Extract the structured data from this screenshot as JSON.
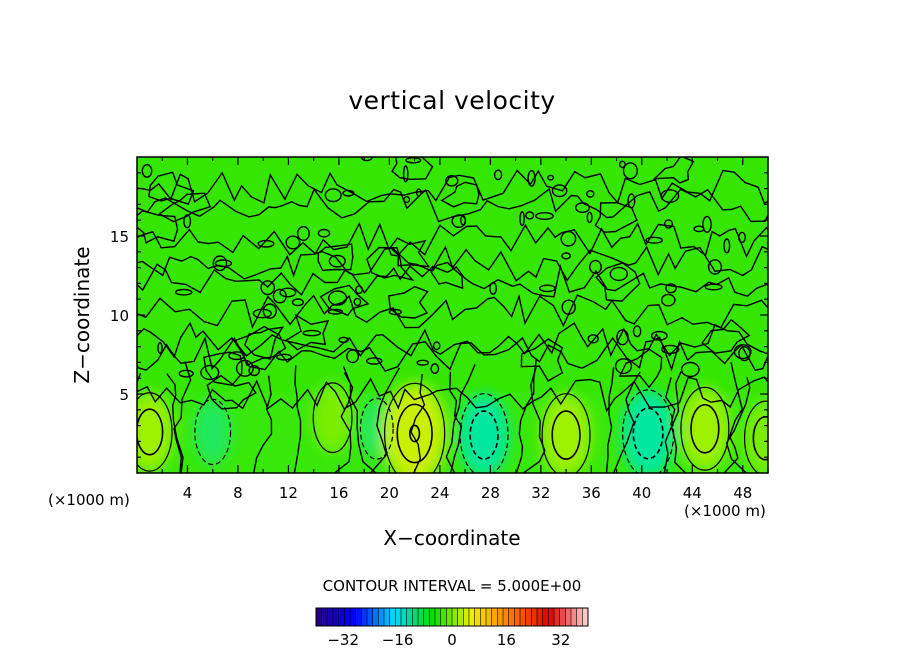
{
  "chart_data": {
    "type": "heatmap",
    "title": "vertical velocity",
    "xlabel": "X−coordinate",
    "ylabel": "Z−coordinate",
    "x_unit_label": "(×1000 m)",
    "z_unit_label": "(×1000 m)",
    "xlim": [
      0,
      50
    ],
    "zlim": [
      0,
      20
    ],
    "x_ticks": [
      4,
      8,
      12,
      16,
      20,
      24,
      28,
      32,
      36,
      40,
      44,
      48
    ],
    "z_ticks": [
      5,
      10,
      15
    ],
    "contour_interval_text": "CONTOUR INTERVAL = 5.000E+00",
    "contour_interval": 5.0,
    "colorbar": {
      "range": [
        -40,
        40
      ],
      "ticks": [
        "−32",
        "−16",
        "0",
        "16",
        "32"
      ],
      "tick_values": [
        -32,
        -16,
        0,
        16,
        32
      ],
      "colormap": [
        "#2a0078",
        "#0000ff",
        "#00d8ff",
        "#00e000",
        "#f0f000",
        "#ff7800",
        "#e00000",
        "#ffd8d8"
      ]
    },
    "cells": [
      {
        "x_center": 1,
        "z_center": 2.6,
        "w": 6,
        "type": "updraft"
      },
      {
        "x_center": 6,
        "z_center": 2.6,
        "w": -3,
        "type": "downdraft"
      },
      {
        "x_center": 15.5,
        "z_center": 3.5,
        "w": 4,
        "type": "updraft"
      },
      {
        "x_center": 19,
        "z_center": 2.8,
        "w": -2,
        "type": "downdraft"
      },
      {
        "x_center": 22,
        "z_center": 2.5,
        "w": 11,
        "type": "updraft"
      },
      {
        "x_center": 27.5,
        "z_center": 2.4,
        "w": -7,
        "type": "downdraft"
      },
      {
        "x_center": 34,
        "z_center": 2.4,
        "w": 7,
        "type": "updraft"
      },
      {
        "x_center": 40.5,
        "z_center": 2.5,
        "w": -8,
        "type": "downdraft"
      },
      {
        "x_center": 45,
        "z_center": 2.8,
        "w": 7,
        "type": "updraft"
      },
      {
        "x_center": 49.8,
        "z_center": 2.2,
        "w": 5,
        "type": "updraft"
      }
    ]
  }
}
